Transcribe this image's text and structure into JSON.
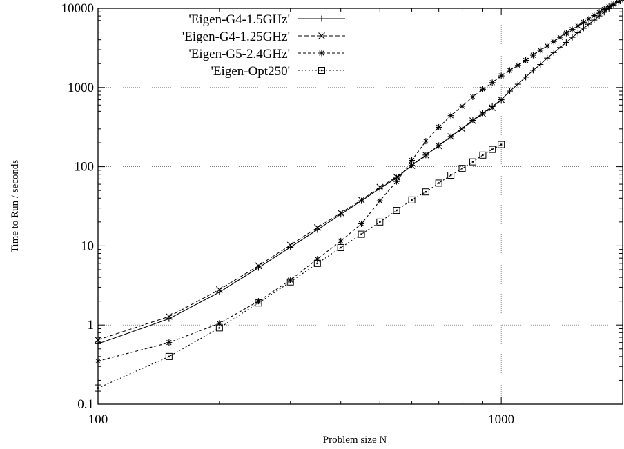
{
  "chart_data": {
    "type": "line",
    "title": "",
    "xlabel": "Problem size N",
    "ylabel": "Time to Run / seconds",
    "xscale": "log",
    "yscale": "log",
    "xlim": [
      100,
      2000
    ],
    "ylim": [
      0.1,
      10000
    ],
    "grid": true,
    "legend_position": "top-left",
    "x_ticks": [
      100,
      1000
    ],
    "x_tick_labels": [
      "100",
      "1000"
    ],
    "y_ticks": [
      0.1,
      1,
      10,
      100,
      1000,
      10000
    ],
    "y_tick_labels": [
      "0.1",
      "1",
      "10",
      "100",
      "1000",
      "10000"
    ],
    "series": [
      {
        "name": "'Eigen-G4-1.5GHz'",
        "marker": "plus",
        "dash": "",
        "x": [
          100,
          150,
          200,
          250,
          300,
          350,
          400,
          450,
          500,
          550,
          600,
          650,
          700,
          750,
          800,
          850,
          900,
          950,
          1000,
          1050,
          1100,
          1150,
          1200,
          1250,
          1300,
          1350,
          1400,
          1450,
          1500,
          1550,
          1600,
          1650,
          1700,
          1750,
          1800,
          1850,
          1900,
          1950,
          2000
        ],
        "y": [
          0.58,
          1.2,
          2.6,
          5.3,
          9.6,
          16,
          25,
          37,
          53,
          72,
          104,
          140,
          185,
          240,
          305,
          385,
          475,
          575,
          700,
          900,
          1100,
          1350,
          1650,
          1950,
          2350,
          2750,
          3200,
          3700,
          4300,
          4900,
          5600,
          6300,
          7100,
          8000,
          8900,
          9900,
          10900,
          11900,
          13000
        ]
      },
      {
        "name": "'Eigen-G4-1.25GHz'",
        "marker": "cross",
        "dash": "6 3",
        "x": [
          100,
          150,
          200,
          250,
          300,
          350,
          400,
          450,
          500,
          550,
          600,
          650,
          700,
          750,
          800,
          850,
          900,
          950,
          1000
        ],
        "y": [
          0.65,
          1.28,
          2.8,
          5.6,
          10.2,
          17,
          26,
          38,
          55,
          74,
          103,
          140,
          183,
          240,
          300,
          380,
          465,
          555,
          700
        ]
      },
      {
        "name": "'Eigen-G5-2.4GHz'",
        "marker": "star",
        "dash": "4 3",
        "x": [
          100,
          150,
          200,
          250,
          300,
          350,
          400,
          450,
          500,
          550,
          600,
          650,
          700,
          750,
          800,
          850,
          900,
          950,
          1000,
          1050,
          1100,
          1150,
          1200,
          1250,
          1300,
          1350,
          1400,
          1450,
          1500,
          1550,
          1600,
          1650,
          1700,
          1750,
          1800,
          1850,
          1900,
          1950,
          2000
        ],
        "y": [
          0.35,
          0.6,
          1.05,
          2.0,
          3.7,
          6.8,
          11.5,
          19,
          37,
          65,
          120,
          210,
          315,
          440,
          580,
          760,
          950,
          1150,
          1400,
          1650,
          1900,
          2200,
          2550,
          2950,
          3350,
          3800,
          4300,
          4850,
          5400,
          6000,
          6650,
          7350,
          8100,
          8900,
          9700,
          10500,
          11300,
          12100,
          13000
        ]
      },
      {
        "name": "'Eigen-Opt250'",
        "marker": "square",
        "dash": "2 3",
        "x": [
          100,
          150,
          200,
          250,
          300,
          350,
          400,
          450,
          500,
          550,
          600,
          650,
          700,
          750,
          800,
          850,
          900,
          950,
          1000
        ],
        "y": [
          0.16,
          0.4,
          0.92,
          1.9,
          3.5,
          6.0,
          9.5,
          14,
          20,
          28,
          38,
          48,
          62,
          78,
          95,
          115,
          140,
          165,
          190
        ]
      }
    ]
  }
}
